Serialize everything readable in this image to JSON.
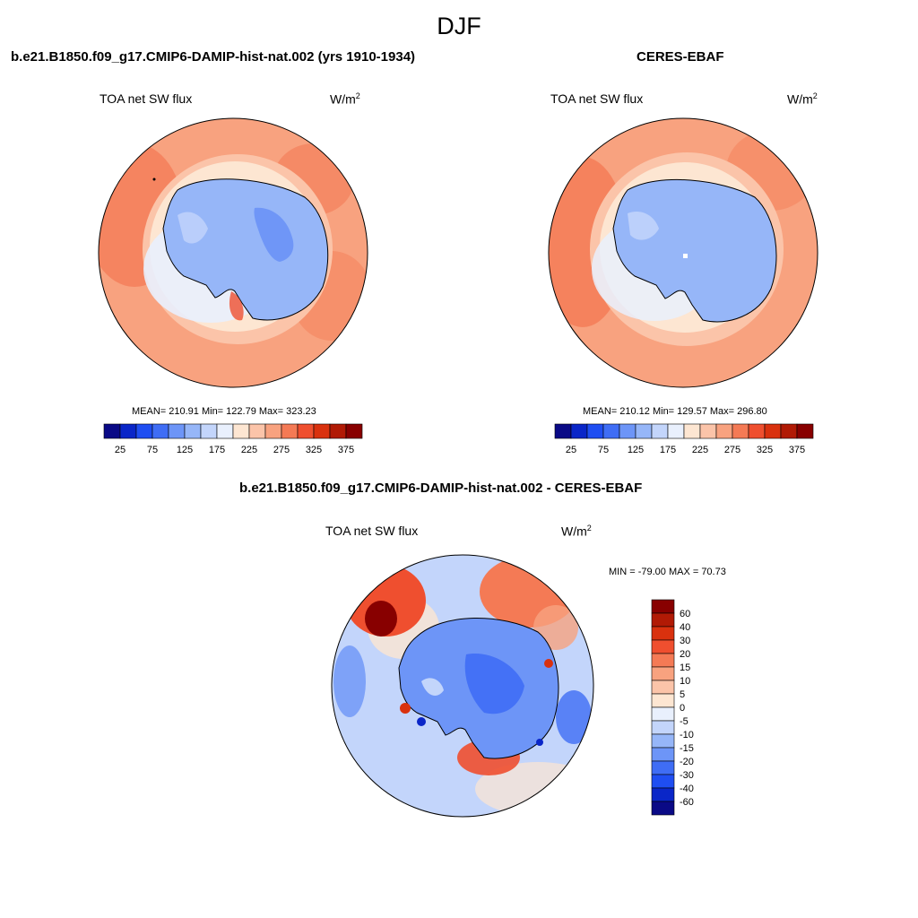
{
  "figure": {
    "title": "DJF"
  },
  "panels": [
    {
      "id": "model",
      "title": "b.e21.B1850.f09_g17.CMIP6-DAMIP-hist-nat.002 (yrs 1910-1934)",
      "variable": "TOA net SW flux",
      "units_base": "W/m",
      "units_exp": "2",
      "stats": "MEAN= 210.91  Min= 122.79  Max= 323.23"
    },
    {
      "id": "obs",
      "title": "CERES-EBAF",
      "variable": "TOA net SW flux",
      "units_base": "W/m",
      "units_exp": "2",
      "stats": "MEAN= 210.12  Min= 129.57  Max= 296.80"
    },
    {
      "id": "diff",
      "title": "b.e21.B1850.f09_g17.CMIP6-DAMIP-hist-nat.002 - CERES-EBAF",
      "variable": "TOA net SW flux",
      "units_base": "W/m",
      "units_exp": "2",
      "stats": "MIN = -79.00 MAX =  70.73"
    }
  ],
  "colorbars": {
    "absolute": {
      "ticks": [
        "25",
        "75",
        "125",
        "175",
        "225",
        "275",
        "325",
        "375"
      ],
      "colors": [
        "#0a0a86",
        "#0a26c8",
        "#1f4ef2",
        "#3f6df5",
        "#6d95f7",
        "#96b6f8",
        "#c3d5fb",
        "#e9f0fd",
        "#fde6d2",
        "#fbc4a9",
        "#f8a27f",
        "#f47a55",
        "#ef4f2f",
        "#d9310e",
        "#b11a05",
        "#880000"
      ]
    },
    "difference": {
      "ticks": [
        "60",
        "40",
        "30",
        "20",
        "15",
        "10",
        "5",
        "0",
        "-5",
        "-10",
        "-15",
        "-20",
        "-30",
        "-40",
        "-60"
      ],
      "colors": [
        "#880000",
        "#b11a05",
        "#d9310e",
        "#ef4f2f",
        "#f47a55",
        "#f8a27f",
        "#fbc4a9",
        "#fde6d2",
        "#e9f0fd",
        "#c3d5fb",
        "#96b6f8",
        "#6d95f7",
        "#3f6df5",
        "#1f4ef2",
        "#0a26c8",
        "#0a0a86"
      ]
    }
  }
}
